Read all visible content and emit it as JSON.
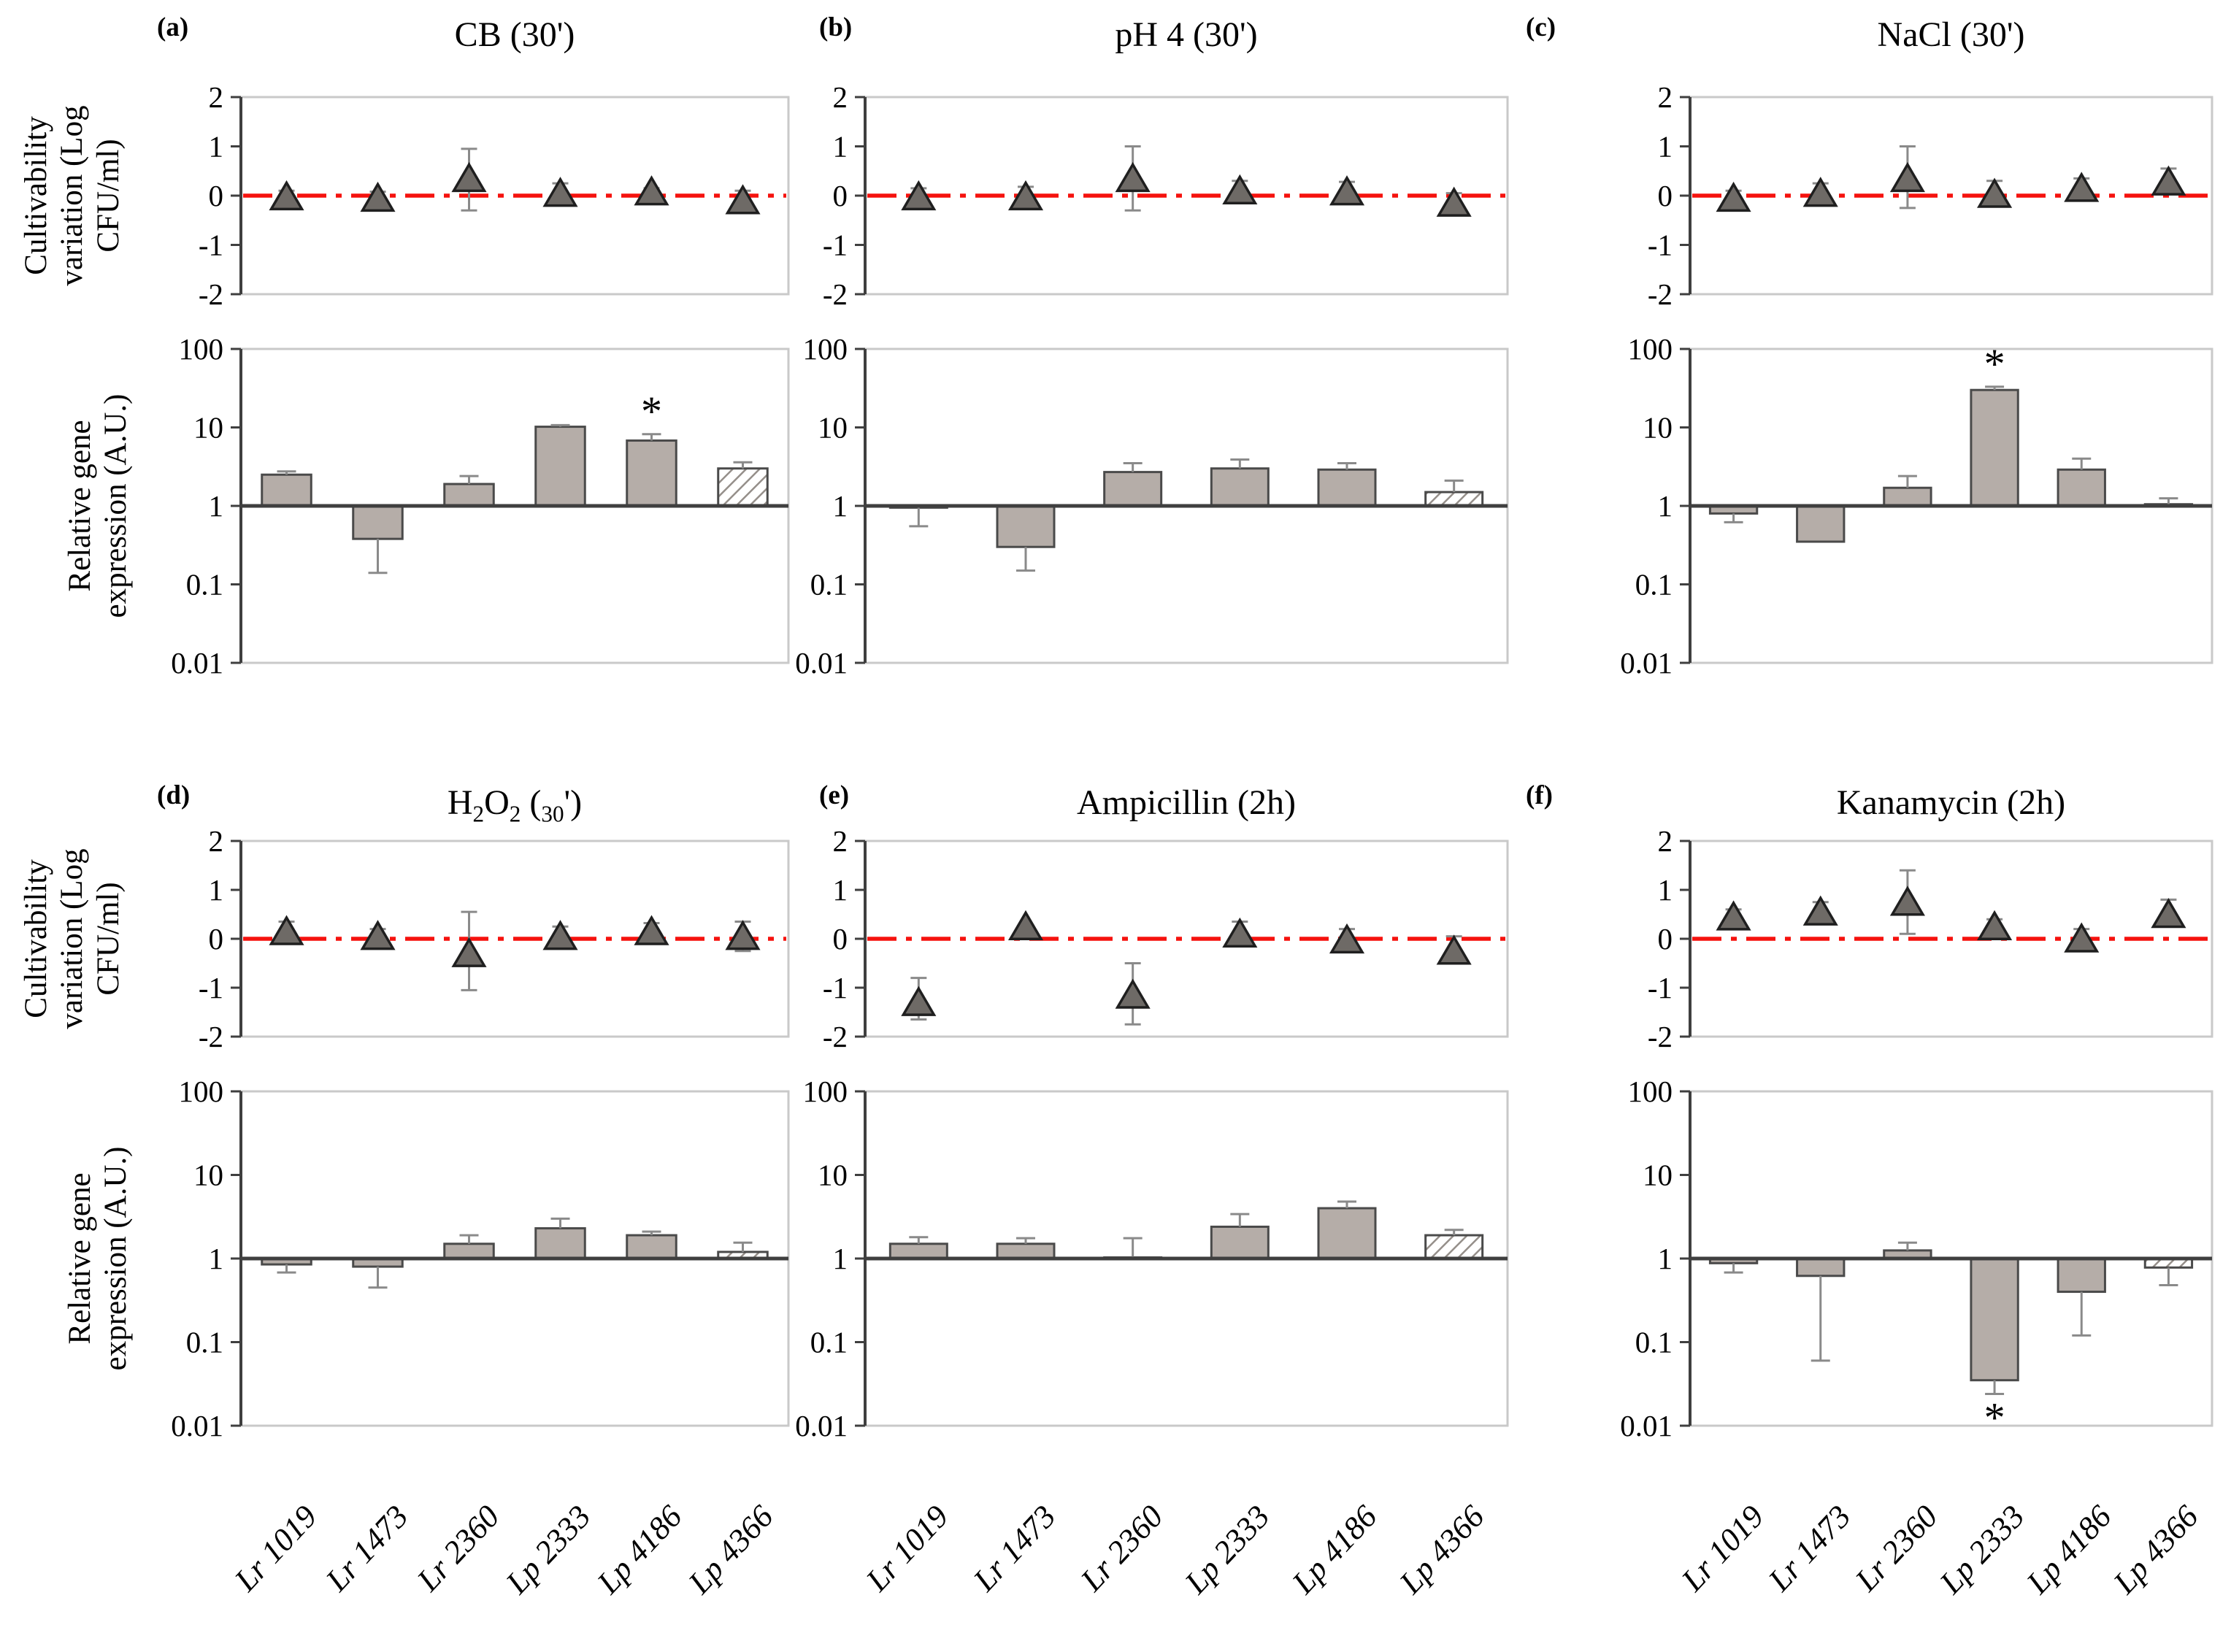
{
  "figure": {
    "strains": [
      "Lr 1019",
      "Lr 1473",
      "Lr 2360",
      "Lp 2333",
      "Lp 4186",
      "Lp 4366"
    ],
    "scatter_axis": {
      "label": "Cultivability\nvariation (Log\nCFU/ml)",
      "ticks": [
        2,
        1,
        0,
        -1,
        -2
      ],
      "ylim": [
        -2,
        2
      ],
      "ref_line": 0,
      "grid": false
    },
    "bar_axis": {
      "label": "Relative gene\nexpression (A.U.)",
      "ticks": [
        "100",
        "10",
        "1",
        "0.1",
        "0.01"
      ],
      "ylim": [
        0.01,
        100
      ],
      "baseline": 1,
      "scale": "log",
      "grid": false
    },
    "significance_marker": "*",
    "colors": {
      "bar_fill": "#b5ada8",
      "bar_edge": "#4a4a4a",
      "marker_fill": "#6e6a66",
      "marker_edge": "#1f1f1f",
      "error_bar": "#8a8a8a",
      "ref_line": "#f5120e",
      "frame": "#c9c9c9",
      "axis": "#3f3f3f",
      "hatch_line": "#958f8a",
      "background": "#ffffff"
    }
  },
  "chart_data": [
    {
      "panel_letter": "(a)",
      "title": "CB  (30')",
      "cultivability": {
        "type": "scatter",
        "y": [
          -0.02,
          -0.05,
          0.35,
          0.05,
          0.08,
          -0.1
        ],
        "err_lo": [
          -0.12,
          -0.15,
          -0.3,
          -0.1,
          -0.05,
          -0.22
        ],
        "err_hi": [
          0.1,
          0.08,
          0.95,
          0.25,
          0.15,
          0.1
        ]
      },
      "expression": {
        "type": "bar",
        "values": [
          2.5,
          0.38,
          1.9,
          10.2,
          6.8,
          3.0
        ],
        "err_lo": [
          2.5,
          0.14,
          1.9,
          10.2,
          6.8,
          3.0
        ],
        "err_hi": [
          2.75,
          0.38,
          2.4,
          10.7,
          8.2,
          3.6
        ],
        "asterisk_index": 4,
        "asterisk_pos": "above",
        "hatched_index": 5
      }
    },
    {
      "panel_letter": "(b)",
      "title": "pH 4 (30')",
      "cultivability": {
        "type": "scatter",
        "y": [
          -0.02,
          -0.02,
          0.35,
          0.1,
          0.08,
          -0.15
        ],
        "err_lo": [
          -0.12,
          -0.12,
          -0.3,
          -0.05,
          -0.08,
          -0.28
        ],
        "err_hi": [
          0.15,
          0.18,
          1.0,
          0.3,
          0.28,
          0.05
        ]
      },
      "expression": {
        "type": "bar",
        "values": [
          0.95,
          0.3,
          2.7,
          3.0,
          2.9,
          1.5
        ],
        "err_lo": [
          0.55,
          0.15,
          2.7,
          3.0,
          2.9,
          1.5
        ],
        "err_hi": [
          0.95,
          0.3,
          3.5,
          3.9,
          3.5,
          2.1
        ],
        "asterisk_index": -1,
        "asterisk_pos": null,
        "hatched_index": 5
      }
    },
    {
      "panel_letter": "(c)",
      "title": "NaCl (30')",
      "cultivability": {
        "type": "scatter",
        "y": [
          -0.05,
          0.05,
          0.35,
          0.03,
          0.15,
          0.28
        ],
        "err_lo": [
          -0.15,
          -0.05,
          -0.25,
          -0.12,
          0.02,
          0.1
        ],
        "err_hi": [
          0.1,
          0.25,
          1.0,
          0.3,
          0.35,
          0.55
        ]
      },
      "expression": {
        "type": "bar",
        "values": [
          0.8,
          0.35,
          1.7,
          30,
          2.9,
          1.05
        ],
        "err_lo": [
          0.62,
          0.35,
          1.7,
          30,
          2.9,
          1.05
        ],
        "err_hi": [
          0.8,
          0.35,
          2.4,
          33,
          4.0,
          1.25
        ],
        "asterisk_index": 3,
        "asterisk_pos": "above",
        "hatched_index": 5
      }
    },
    {
      "panel_letter": "(d)",
      "title": "H2O2  (30')",
      "title_subscript": true,
      "cultivability": {
        "type": "scatter",
        "y": [
          0.15,
          0.05,
          -0.3,
          0.05,
          0.15,
          0.05
        ],
        "err_lo": [
          0.02,
          -0.08,
          -1.05,
          -0.08,
          0.03,
          -0.25
        ],
        "err_hi": [
          0.35,
          0.2,
          0.55,
          0.25,
          0.32,
          0.35
        ]
      },
      "expression": {
        "type": "bar",
        "values": [
          0.85,
          0.8,
          1.5,
          2.3,
          1.9,
          1.2
        ],
        "err_lo": [
          0.68,
          0.45,
          1.5,
          2.3,
          1.9,
          1.2
        ],
        "err_hi": [
          0.85,
          0.8,
          1.9,
          3.0,
          2.1,
          1.55
        ],
        "asterisk_index": -1,
        "asterisk_pos": null,
        "hatched_index": 5
      }
    },
    {
      "panel_letter": "(e)",
      "title": "Ampicillin (2h)",
      "cultivability": {
        "type": "scatter",
        "y": [
          -1.3,
          0.25,
          -1.15,
          0.1,
          -0.02,
          -0.25
        ],
        "err_lo": [
          -1.65,
          0.1,
          -1.75,
          -0.05,
          -0.15,
          -0.45
        ],
        "err_hi": [
          -0.8,
          0.25,
          -0.5,
          0.35,
          0.2,
          0.05
        ]
      },
      "expression": {
        "type": "bar",
        "values": [
          1.5,
          1.5,
          1.03,
          2.4,
          4.0,
          1.9
        ],
        "err_lo": [
          1.5,
          1.5,
          1.03,
          2.4,
          4.0,
          1.9
        ],
        "err_hi": [
          1.8,
          1.75,
          1.75,
          3.4,
          4.8,
          2.2
        ],
        "asterisk_index": -1,
        "asterisk_pos": null,
        "hatched_index": 5
      }
    },
    {
      "panel_letter": "(f)",
      "title": "Kanamycin (2h)",
      "cultivability": {
        "type": "scatter",
        "y": [
          0.45,
          0.55,
          0.75,
          0.25,
          0.0,
          0.5
        ],
        "err_lo": [
          0.3,
          0.4,
          0.1,
          0.1,
          -0.15,
          0.35
        ],
        "err_hi": [
          0.6,
          0.75,
          1.4,
          0.4,
          0.2,
          0.8
        ]
      },
      "expression": {
        "type": "bar",
        "values": [
          0.88,
          0.62,
          1.25,
          0.035,
          0.4,
          0.78
        ],
        "err_lo": [
          0.68,
          0.06,
          1.25,
          0.024,
          0.12,
          0.48
        ],
        "err_hi": [
          0.88,
          0.62,
          1.55,
          0.035,
          0.4,
          0.78
        ],
        "asterisk_index": 3,
        "asterisk_pos": "below",
        "hatched_index": 5
      }
    }
  ]
}
